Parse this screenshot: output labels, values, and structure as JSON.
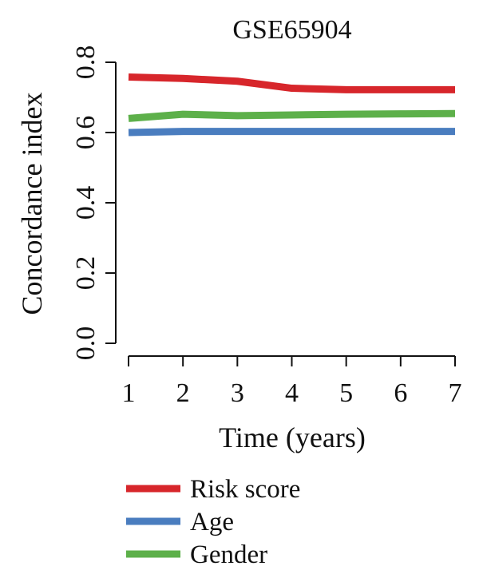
{
  "chart_data": {
    "type": "line",
    "title": "GSE65904",
    "xlabel": "Time (years)",
    "ylabel": "Concordance index",
    "x": [
      1,
      2,
      3,
      4,
      5,
      6,
      7
    ],
    "x_tick_labels": [
      "1",
      "2",
      "3",
      "4",
      "5",
      "6",
      "7"
    ],
    "y_ticks": [
      0.0,
      0.2,
      0.4,
      0.6,
      0.8
    ],
    "y_tick_labels": [
      "0.0",
      "0.2",
      "0.4",
      "0.6",
      "0.8"
    ],
    "xlim": [
      1,
      7
    ],
    "ylim": [
      0.0,
      0.8
    ],
    "grid": false,
    "legend_position": "bottom",
    "series": [
      {
        "name": "Risk score",
        "color": "#d7262b",
        "values": [
          0.758,
          0.754,
          0.746,
          0.726,
          0.722,
          0.722,
          0.722
        ]
      },
      {
        "name": "Age",
        "color": "#4a7dbf",
        "values": [
          0.6,
          0.603,
          0.603,
          0.603,
          0.603,
          0.603,
          0.603
        ]
      },
      {
        "name": "Gender",
        "color": "#5db04a",
        "values": [
          0.64,
          0.652,
          0.648,
          0.65,
          0.652,
          0.653,
          0.654
        ]
      }
    ]
  }
}
